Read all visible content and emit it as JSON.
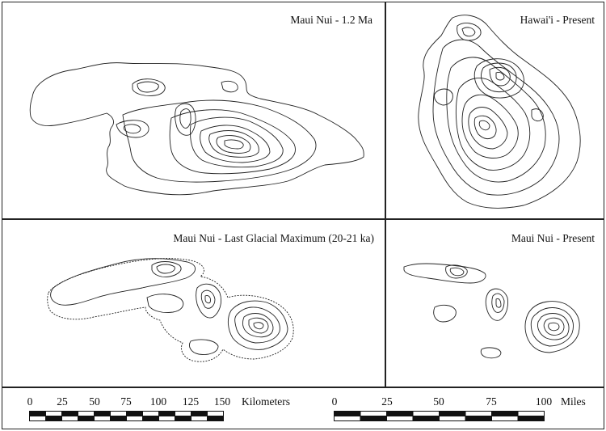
{
  "panels": {
    "top_left": {
      "title": "Maui Nui - 1.2 Ma"
    },
    "top_right": {
      "title": "Hawai'i - Present"
    },
    "bottom_left": {
      "title": "Maui Nui - Last Glacial Maximum (20-21 ka)"
    },
    "bottom_right": {
      "title": "Maui Nui - Present"
    }
  },
  "scale_km": {
    "unit": "Kilometers",
    "ticks": [
      "0",
      "25",
      "50",
      "75",
      "100",
      "125",
      "150"
    ]
  },
  "scale_mi": {
    "unit": "Miles",
    "ticks": [
      "0",
      "25",
      "50",
      "75",
      "100"
    ]
  },
  "colors": {
    "line": "#222222",
    "background": "#ffffff"
  }
}
